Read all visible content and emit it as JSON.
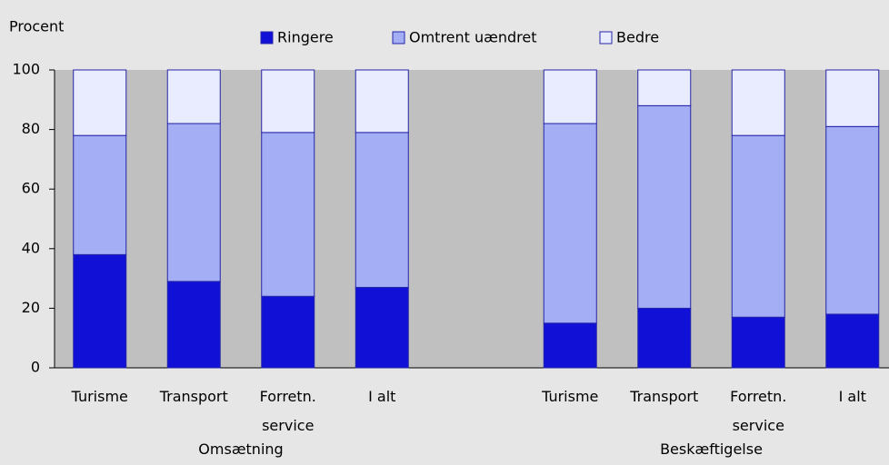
{
  "chart_data": {
    "type": "stacked_bar",
    "ylabel": "Procent",
    "categories": [
      "Turisme",
      "Transport",
      "Forretn. service",
      "I alt",
      null,
      "Turisme",
      "Transport",
      "Forretn. service",
      "I alt"
    ],
    "group_labels": [
      "Omsætning",
      "Beskæftigelse"
    ],
    "series": [
      {
        "name": "Ringere",
        "color": "#1010d6",
        "values": [
          38,
          29,
          24,
          27,
          null,
          15,
          20,
          17,
          18
        ]
      },
      {
        "name": "Omtrent uændret",
        "color": "#a3aef5",
        "values": [
          40,
          53,
          55,
          52,
          null,
          67,
          68,
          61,
          63
        ]
      },
      {
        "name": "Bedre",
        "color": "#e9ecff",
        "values": [
          22,
          18,
          21,
          21,
          null,
          18,
          12,
          22,
          19
        ]
      }
    ],
    "ylim": [
      0,
      100
    ],
    "yticks": [
      0,
      20,
      40,
      60,
      80,
      100
    ],
    "legend": "top"
  }
}
